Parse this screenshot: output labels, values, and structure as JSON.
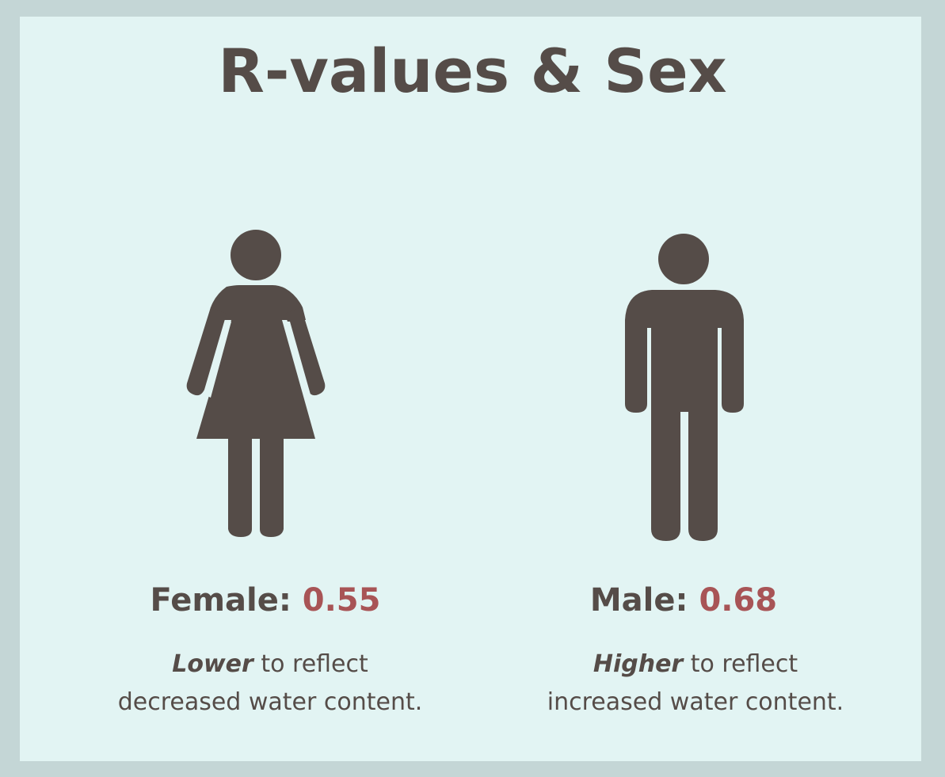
{
  "title": "R-values & Sex",
  "female": {
    "label": "Female:",
    "value": "0.55",
    "emphasis": "Lower",
    "line1_rest": " to reflect",
    "line2": "decreased water content.",
    "icon": "female-figure-icon"
  },
  "male": {
    "label": "Male:",
    "value": "0.68",
    "emphasis": "Higher",
    "line1_rest": " to reflect",
    "line2": "increased water content.",
    "icon": "male-figure-icon"
  },
  "colors": {
    "frame": "#c4d6d6",
    "background": "#e2f4f3",
    "text": "#554c48",
    "value": "#a85456"
  }
}
